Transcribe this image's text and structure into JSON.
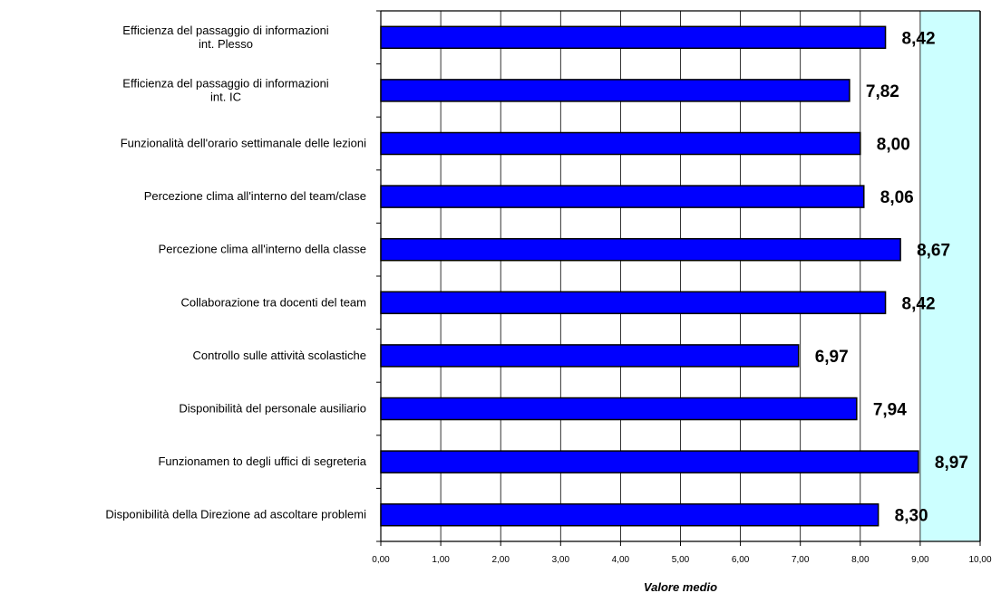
{
  "chart_data": {
    "type": "bar",
    "orientation": "horizontal",
    "categories": [
      [
        "Efficienza del passaggio di informazioni",
        "int. Plesso"
      ],
      [
        "Efficienza del passaggio di informazioni",
        "int. IC"
      ],
      [
        "Funzionalità dell'orario settimanale delle lezioni"
      ],
      [
        "Percezione clima all'interno del team/clase"
      ],
      [
        "Percezione clima all'interno della classe"
      ],
      [
        "Collaborazione tra docenti del team"
      ],
      [
        "Controllo sulle attività scolastiche"
      ],
      [
        "Disponibilità del personale ausiliario"
      ],
      [
        "Funzionamen to degli uffici di segreteria"
      ],
      [
        "Disponibilità della Direzione ad ascoltare problemi"
      ]
    ],
    "values": [
      8.42,
      7.82,
      8.0,
      8.06,
      8.67,
      8.42,
      6.97,
      7.94,
      8.97,
      8.3
    ],
    "data_labels": [
      "8,42",
      "7,82",
      "8,00",
      "8,06",
      "8,67",
      "8,42",
      "6,97",
      "7,94",
      "8,97",
      "8,30"
    ],
    "xlabel": "Valore medio",
    "xlim": [
      0,
      10
    ],
    "x_ticks": [
      "0,00",
      "1,00",
      "2,00",
      "3,00",
      "4,00",
      "5,00",
      "6,00",
      "7,00",
      "8,00",
      "9,00",
      "10,00"
    ],
    "grid": true,
    "highlight_band": [
      9,
      10
    ],
    "colors": {
      "bar": "#0000ff",
      "bar_edge": "#000000",
      "highlight": "#ccffff",
      "grid": "#000000"
    }
  }
}
